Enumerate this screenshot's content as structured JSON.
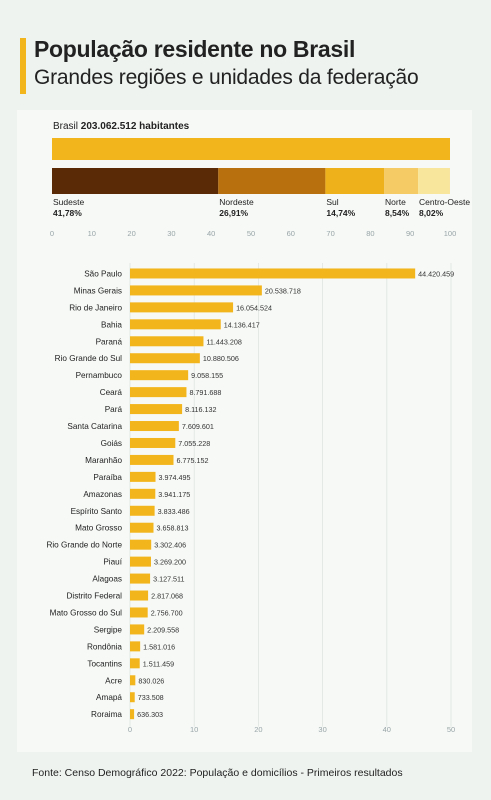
{
  "header": {
    "title": "População residente no Brasil",
    "subtitle": "Grandes regiões e unidades da federação"
  },
  "brasil": {
    "label": "Brasil",
    "value": "203.062.512 habitantes",
    "bar_color": "#f3b51c"
  },
  "chart_data": [
    {
      "type": "bar",
      "stacked": true,
      "orientation": "horizontal",
      "xlim": [
        0,
        100
      ],
      "x_ticks": [
        "0",
        "10",
        "20",
        "30",
        "40",
        "50",
        "60",
        "70",
        "80",
        "90",
        "100"
      ],
      "series": [
        {
          "name": "Sudeste",
          "value": 41.78,
          "label": "41,78%",
          "color": "#5a2a06"
        },
        {
          "name": "Nordeste",
          "value": 26.91,
          "label": "26,91%",
          "color": "#b8700e"
        },
        {
          "name": "Sul",
          "value": 14.74,
          "label": "14,74%",
          "color": "#eeb01b"
        },
        {
          "name": "Norte",
          "value": 8.54,
          "label": "8,54%",
          "color": "#f4cb64"
        },
        {
          "name": "Centro-Oeste",
          "value": 8.02,
          "label": "8,02%",
          "color": "#f8e69c"
        }
      ]
    },
    {
      "type": "bar",
      "orientation": "horizontal",
      "xlim": [
        0,
        50
      ],
      "x_ticks": [
        "0",
        "10",
        "20",
        "30",
        "40",
        "50"
      ],
      "bar_color": "#f3b51c",
      "categories": [
        "São Paulo",
        "Minas Gerais",
        "Rio de Janeiro",
        "Bahia",
        "Paraná",
        "Rio Grande do Sul",
        "Pernambuco",
        "Ceará",
        "Pará",
        "Santa Catarina",
        "Goiás",
        "Maranhão",
        "Paraíba",
        "Amazonas",
        "Espírito Santo",
        "Mato Grosso",
        "Rio Grande do Norte",
        "Piauí",
        "Alagoas",
        "Distrito Federal",
        "Mato Grosso do Sul",
        "Sergipe",
        "Rondônia",
        "Tocantins",
        "Acre",
        "Amapá",
        "Roraima"
      ],
      "values": [
        44.420459,
        20.538718,
        16.054524,
        14.136417,
        11.443208,
        10.880506,
        9.058155,
        8.791688,
        8.116132,
        7.609601,
        7.055228,
        6.775152,
        3.974495,
        3.941175,
        3.833486,
        3.658813,
        3.302406,
        3.2692,
        3.127511,
        2.817068,
        2.7567,
        2.209558,
        1.581016,
        1.511459,
        0.830026,
        0.733508,
        0.636303
      ],
      "labels": [
        "44.420.459",
        "20.538.718",
        "16.054.524",
        "14.136.417",
        "11.443.208",
        "10.880.506",
        "9.058.155",
        "8.791.688",
        "8.116.132",
        "7.609.601",
        "7.055.228",
        "6.775.152",
        "3.974.495",
        "3.941.175",
        "3.833.486",
        "3.658.813",
        "3.302.406",
        "3.269.200",
        "3.127.511",
        "2.817.068",
        "2.756.700",
        "2.209.558",
        "1.581.016",
        "1.511.459",
        "830.026",
        "733.508",
        "636.303"
      ]
    }
  ],
  "footer": {
    "source": "Fonte: Censo Demográfico 2022: População e domicílios - Primeiros resultados"
  }
}
